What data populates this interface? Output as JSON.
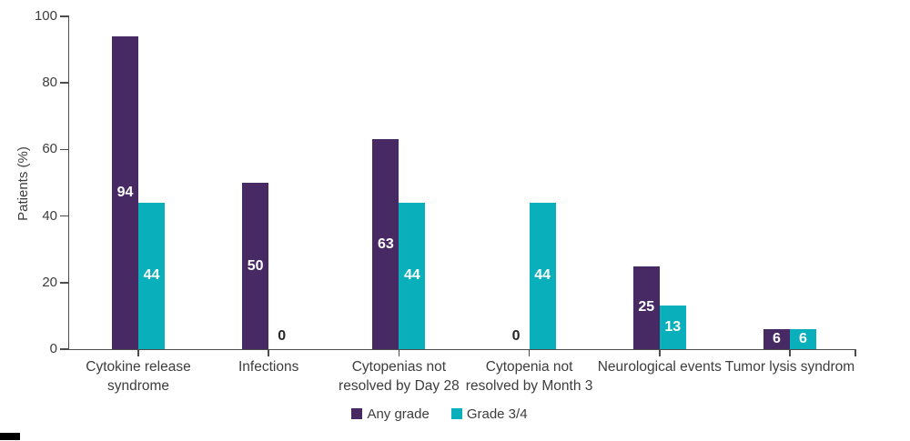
{
  "chart_data": {
    "type": "bar",
    "title": "",
    "xlabel": "",
    "ylabel": "Patients (%)",
    "ylim": [
      0,
      100
    ],
    "yticks": [
      0,
      20,
      40,
      60,
      80,
      100
    ],
    "grid": false,
    "legend_position": "bottom-center",
    "categories": [
      "Cytokine release\nsyndrome",
      "Infections",
      "Cytopenias not\nresolved by Day 28",
      "Cytopenia not\nresolved by Month 3",
      "Neurological events",
      "Tumor lysis syndrom"
    ],
    "series": [
      {
        "name": "Any grade",
        "color": "#472963",
        "values": [
          94,
          50,
          63,
          0,
          25,
          6
        ]
      },
      {
        "name": "Grade 3/4",
        "color": "#09afba",
        "values": [
          44,
          0,
          44,
          44,
          13,
          6
        ]
      }
    ],
    "bar_labels_shown": true
  },
  "styles": {
    "background": "#ffffff",
    "axis_color": "#4d4d4d",
    "text_color": "#3d3d3d",
    "bar_label_color": "#ffffff",
    "zero_label_color": "#262626",
    "bottom_left_mark_color": "#000000"
  }
}
